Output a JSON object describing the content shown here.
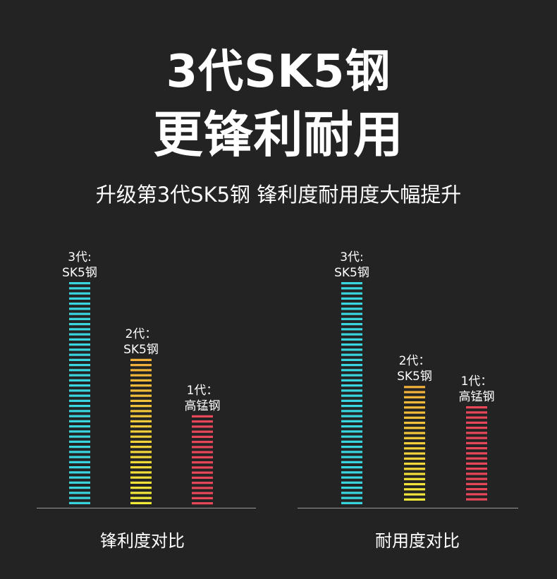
{
  "header": {
    "title_line1": "3代SK5钢",
    "title_line2": "更锋利耐用",
    "subtitle": "升级第3代SK5钢 锋利度耐用度大幅提升"
  },
  "colors": {
    "background": "#232323",
    "gen3": "#3ad6e0",
    "gen2_top": "#f2b13a",
    "gen2_bottom": "#f2ea3a",
    "gen1": "#e8475a",
    "axis": "#9a9a9a"
  },
  "chart_data": [
    {
      "type": "bar",
      "title": "锋利度对比",
      "categories": [
        "3代: SK5钢",
        "2代: SK5钢",
        "1代: 高锰钢"
      ],
      "label_lines": [
        [
          "3代:",
          "SK5钢"
        ],
        [
          "2代：",
          "SK5钢"
        ],
        [
          "1代：",
          "高锰钢"
        ]
      ],
      "values": [
        100,
        66,
        41
      ],
      "ylim": [
        0,
        100
      ],
      "grid": false,
      "legend": "none"
    },
    {
      "type": "bar",
      "title": "耐用度对比",
      "categories": [
        "3代: SK5钢",
        "2代: SK5钢",
        "1代: 高锰钢"
      ],
      "label_lines": [
        [
          "3代:",
          "SK5钢"
        ],
        [
          "2代：",
          "SK5钢"
        ],
        [
          "1代：",
          "高锰钢"
        ]
      ],
      "values": [
        100,
        54,
        45
      ],
      "ylim": [
        0,
        100
      ],
      "grid": false,
      "legend": "none"
    }
  ]
}
